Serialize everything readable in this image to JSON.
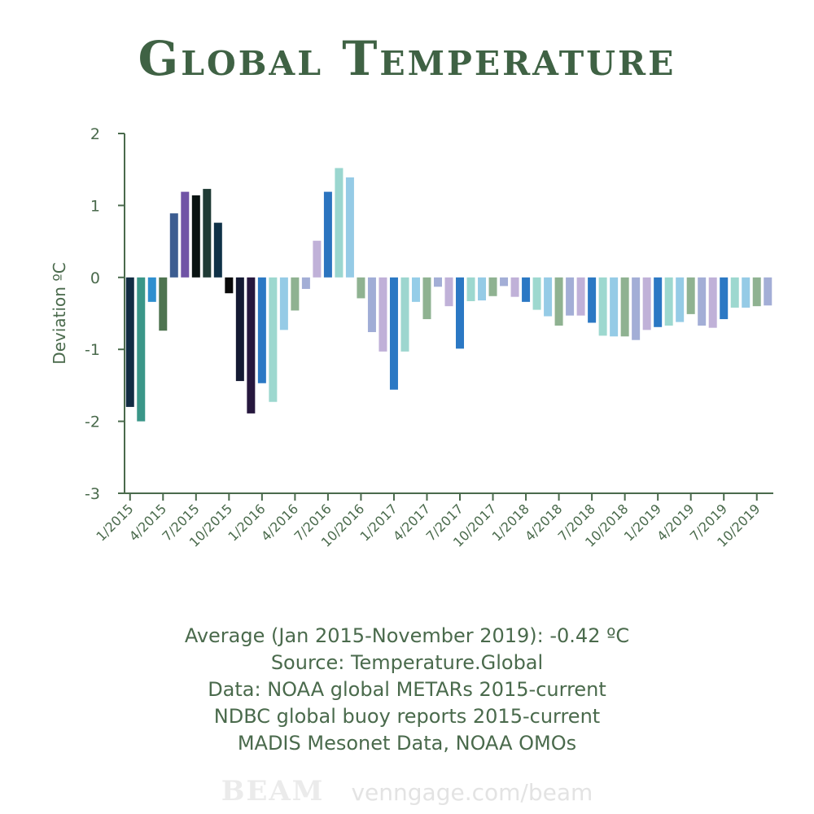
{
  "title": "Global Temperature",
  "footer": {
    "lines": [
      "Average (Jan 2015-November 2019): -0.42 ºC",
      "Source: Temperature.Global",
      "Data:  NOAA global METARs 2015-current",
      "NDBC global buoy reports 2015-current",
      "MADIS Mesonet Data, NOAA OMOs"
    ]
  },
  "watermark": {
    "logo": "BEAM",
    "url": "venngage.com/beam"
  },
  "chart_data": {
    "type": "bar",
    "ylabel": "Deviation ºC",
    "ylim": [
      -3,
      2
    ],
    "yticks": [
      2,
      1,
      0,
      -1,
      -2,
      -3
    ],
    "xtick_labels": [
      "1/2015",
      "4/2015",
      "7/2015",
      "10/2015",
      "1/2016",
      "4/2016",
      "7/2016",
      "10/2016",
      "1/2017",
      "4/2017",
      "7/2017",
      "10/2017",
      "1/2018",
      "4/2018",
      "7/2018",
      "10/2018",
      "1/2019",
      "4/2019",
      "7/2019",
      "10/2019"
    ],
    "values": [
      -1.8,
      -2.0,
      -0.34,
      -0.74,
      0.89,
      1.19,
      1.14,
      1.23,
      0.76,
      -0.22,
      -1.44,
      -1.89,
      -1.47,
      -1.73,
      -0.73,
      -0.46,
      -0.16,
      0.51,
      1.19,
      1.52,
      1.39,
      -0.29,
      -0.76,
      -1.03,
      -1.56,
      -1.03,
      -0.34,
      -0.58,
      -0.13,
      -0.4,
      -0.99,
      -0.33,
      -0.32,
      -0.26,
      -0.12,
      -0.27,
      -0.34,
      -0.45,
      -0.54,
      -0.67,
      -0.53,
      -0.53,
      -0.63,
      -0.81,
      -0.82,
      -0.82,
      -0.87,
      -0.73,
      -0.69,
      -0.67,
      -0.62,
      -0.51,
      -0.67,
      -0.7,
      -0.58,
      -0.42,
      -0.42,
      -0.4,
      -0.39
    ],
    "colors": [
      "#122c43",
      "#3a9688",
      "#2f8fcf",
      "#4e7450",
      "#3c5d91",
      "#7053a6",
      "#0a1412",
      "#1f3b35",
      "#0f3147",
      "#0a0a0a",
      "#141a33",
      "#26173e",
      "#2b78c4",
      "#9dd8cf",
      "#95cbe6",
      "#8fb291",
      "#a3aed6",
      "#c0b1d8",
      "#2b74bf",
      "#9ad6cf",
      "#95cbe6",
      "#8fb291",
      "#a0add6",
      "#c0b0d8",
      "#2b78c4",
      "#9dd6cf",
      "#95cde8",
      "#8fb291",
      "#a3aed6",
      "#c0b1d8",
      "#2b78c4",
      "#9dd8cf",
      "#95cbe6",
      "#8fb291",
      "#a3aed6",
      "#c0b1d8",
      "#2b78c4",
      "#9dd8cf",
      "#95cbe6",
      "#8fb291",
      "#a3aed6",
      "#c0b1d8",
      "#2b78c4",
      "#9dd8cf",
      "#95cbe6",
      "#8fb291",
      "#a3aed6",
      "#c0b1d8",
      "#2b78c4",
      "#9dd8cf",
      "#95cbe6",
      "#8fb291",
      "#a3aed6",
      "#c0b1d8",
      "#2b78c4",
      "#9dd8cf",
      "#95cbe6",
      "#8fb291",
      "#a3aed6"
    ],
    "axis_color": "#4a6a4c",
    "grid": false
  }
}
